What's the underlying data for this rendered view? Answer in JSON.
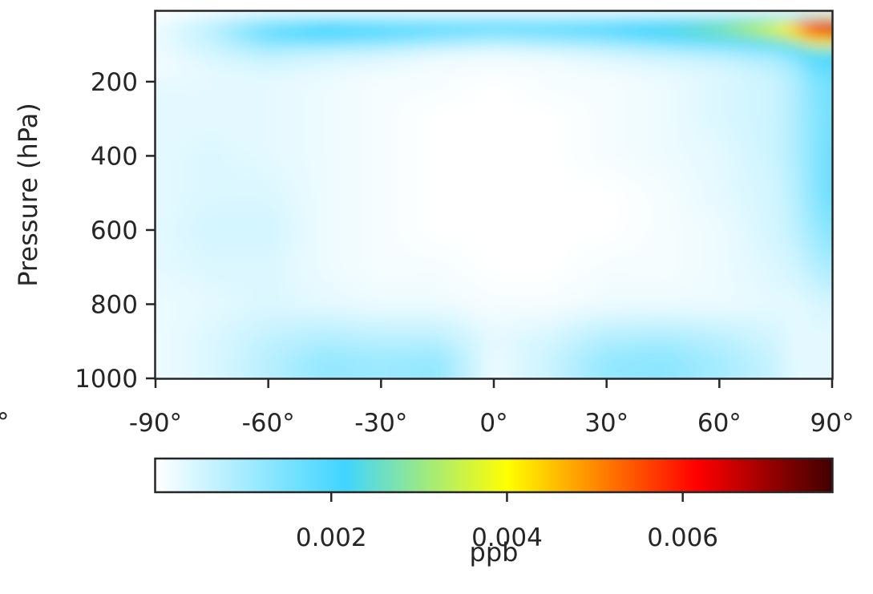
{
  "chart_data": {
    "type": "heatmap",
    "title": "",
    "xlabel": "",
    "ylabel": "Pressure (hPa)",
    "x_ticks": [
      "-90°",
      "-60°",
      "-30°",
      "0°",
      "30°",
      "60°",
      "90°"
    ],
    "x_tick_values": [
      -90,
      -60,
      -30,
      0,
      30,
      60,
      90
    ],
    "xlim": [
      -90,
      90
    ],
    "y_ticks": [
      "200",
      "400",
      "600",
      "800",
      "1000"
    ],
    "y_tick_values": [
      200,
      400,
      600,
      800,
      1000
    ],
    "ylim": [
      1000,
      10
    ],
    "x": [
      -90,
      -75,
      -60,
      -45,
      -30,
      -15,
      0,
      15,
      30,
      45,
      60,
      75,
      80,
      85,
      90
    ],
    "y": [
      10,
      50,
      80,
      120,
      170,
      200,
      300,
      400,
      500,
      600,
      700,
      800,
      900,
      950,
      1000
    ],
    "z": [
      [
        0.0,
        0.0001,
        0.0002,
        0.0002,
        0.0002,
        0.0002,
        0.0002,
        0.0002,
        0.0002,
        0.0002,
        0.0002,
        0.0002,
        0.0002,
        0.0002,
        0.0002
      ],
      [
        0.0002,
        0.0008,
        0.0017,
        0.0022,
        0.002,
        0.0019,
        0.0019,
        0.0019,
        0.0021,
        0.0025,
        0.003,
        0.0042,
        0.0052,
        0.0068,
        0.0075
      ],
      [
        0.0002,
        0.0007,
        0.0017,
        0.002,
        0.0018,
        0.0015,
        0.0012,
        0.0014,
        0.0016,
        0.002,
        0.0024,
        0.003,
        0.0036,
        0.0048,
        0.005
      ],
      [
        0.0002,
        0.0005,
        0.0008,
        0.0006,
        0.0005,
        0.0003,
        0.0002,
        0.0003,
        0.0005,
        0.0007,
        0.0009,
        0.0012,
        0.0016,
        0.0021,
        0.0022
      ],
      [
        0.0001,
        0.0003,
        0.0004,
        0.0003,
        0.0002,
        0.0001,
        0.0001,
        0.0001,
        0.0002,
        0.0003,
        0.0004,
        0.0007,
        0.001,
        0.0016,
        0.0018
      ],
      [
        0.0003,
        0.0003,
        0.0003,
        0.0002,
        0.0001,
        0.0001,
        0.0,
        0.0001,
        0.0001,
        0.0002,
        0.0004,
        0.0006,
        0.0009,
        0.0014,
        0.0016
      ],
      [
        0.0003,
        0.0003,
        0.0003,
        0.0002,
        0.0001,
        0.0,
        0.0,
        0.0,
        0.0001,
        0.0002,
        0.0004,
        0.0006,
        0.0009,
        0.0013,
        0.0016
      ],
      [
        0.0003,
        0.0004,
        0.0003,
        0.0002,
        0.0001,
        0.0,
        0.0,
        0.0,
        0.0001,
        0.0002,
        0.0003,
        0.0006,
        0.0009,
        0.0013,
        0.0017
      ],
      [
        0.0003,
        0.0004,
        0.0004,
        0.0002,
        0.0001,
        0.0,
        0.0,
        0.0,
        0.0,
        0.0001,
        0.0003,
        0.0005,
        0.0008,
        0.0013,
        0.0017
      ],
      [
        0.0003,
        0.0005,
        0.0005,
        0.0002,
        0.0001,
        0.0,
        0.0,
        0.0,
        0.0,
        0.0001,
        0.0002,
        0.0005,
        0.0007,
        0.0011,
        0.0014
      ],
      [
        0.0003,
        0.0004,
        0.0004,
        0.0002,
        0.0001,
        0.0001,
        0.0,
        0.0,
        0.0001,
        0.0001,
        0.0002,
        0.0004,
        0.0005,
        0.0008,
        0.001
      ],
      [
        0.0002,
        0.0003,
        0.0004,
        0.0003,
        0.0002,
        0.0002,
        0.0001,
        0.0001,
        0.0002,
        0.0002,
        0.0002,
        0.0003,
        0.0003,
        0.0004,
        0.0005
      ],
      [
        0.0002,
        0.0004,
        0.0007,
        0.0009,
        0.0008,
        0.0008,
        0.0003,
        0.0005,
        0.0009,
        0.001,
        0.0008,
        0.0005,
        0.0003,
        0.0003,
        0.0003
      ],
      [
        0.0002,
        0.0004,
        0.0008,
        0.0012,
        0.0011,
        0.0012,
        0.0002,
        0.0006,
        0.0012,
        0.0013,
        0.001,
        0.0006,
        0.0003,
        0.0003,
        0.0003
      ],
      [
        0.0002,
        0.0004,
        0.0008,
        0.0012,
        0.0011,
        0.0012,
        0.0002,
        0.0006,
        0.0012,
        0.0013,
        0.001,
        0.0006,
        0.0003,
        0.0003,
        0.0003
      ]
    ],
    "colorbar": {
      "label": "ppb",
      "ticks": [
        "0.002",
        "0.004",
        "0.006"
      ],
      "tick_values": [
        0.002,
        0.004,
        0.006
      ],
      "range": [
        0.0,
        0.0077
      ],
      "orientation": "horizontal",
      "colormap_stops": [
        "#ffffff",
        "#3fd5ff",
        "#ffff00",
        "#ff0000",
        "#400000"
      ]
    },
    "grid": false
  }
}
